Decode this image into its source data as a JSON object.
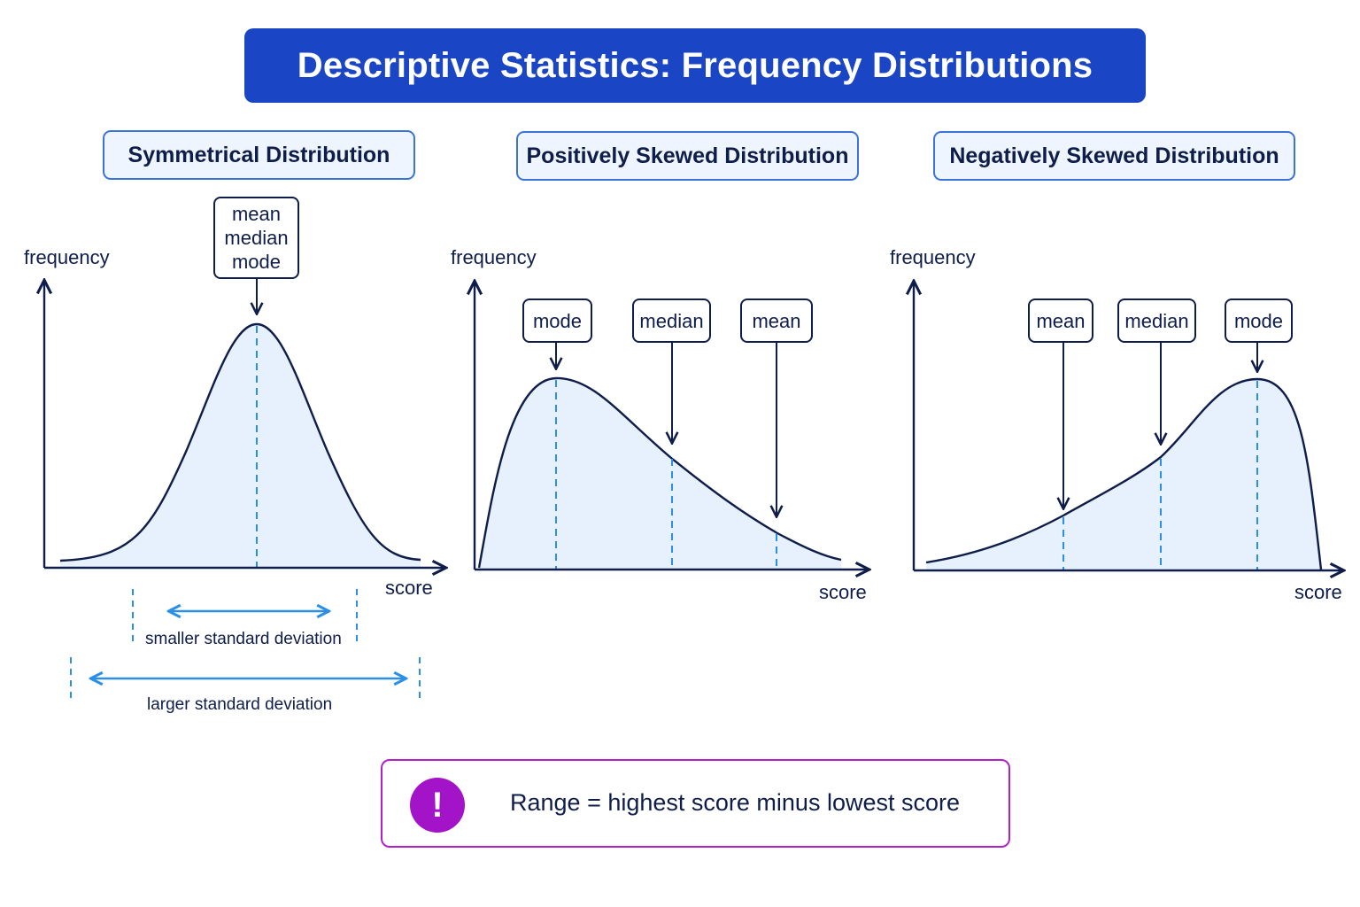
{
  "title": "Descriptive Statistics: Frequency Distributions",
  "panels": [
    {
      "title": "Symmetrical Distribution",
      "y_axis_label": "frequency",
      "x_axis_label": "score",
      "callout": [
        "mean",
        "median",
        "mode"
      ],
      "sd_labels": {
        "smaller": "smaller standard deviation",
        "larger": "larger standard deviation"
      }
    },
    {
      "title": "Positively Skewed Distribution",
      "y_axis_label": "frequency",
      "x_axis_label": "score",
      "callouts": [
        "mode",
        "median",
        "mean"
      ]
    },
    {
      "title": "Negatively Skewed Distribution",
      "y_axis_label": "frequency",
      "x_axis_label": "score",
      "callouts": [
        "mean",
        "median",
        "mode"
      ]
    }
  ],
  "note": {
    "icon": "exclamation-icon",
    "symbol": "!",
    "text": "Range = highest score minus lowest score"
  },
  "colors": {
    "title_background": "#1a45c4",
    "panel_title_border": "#3b73d9",
    "curve": "#0f1d4a",
    "fill": "#e6f1fd",
    "guide_lines": "#2b8fe6",
    "note_border": "#b021c8",
    "note_icon": "#a313c7"
  }
}
